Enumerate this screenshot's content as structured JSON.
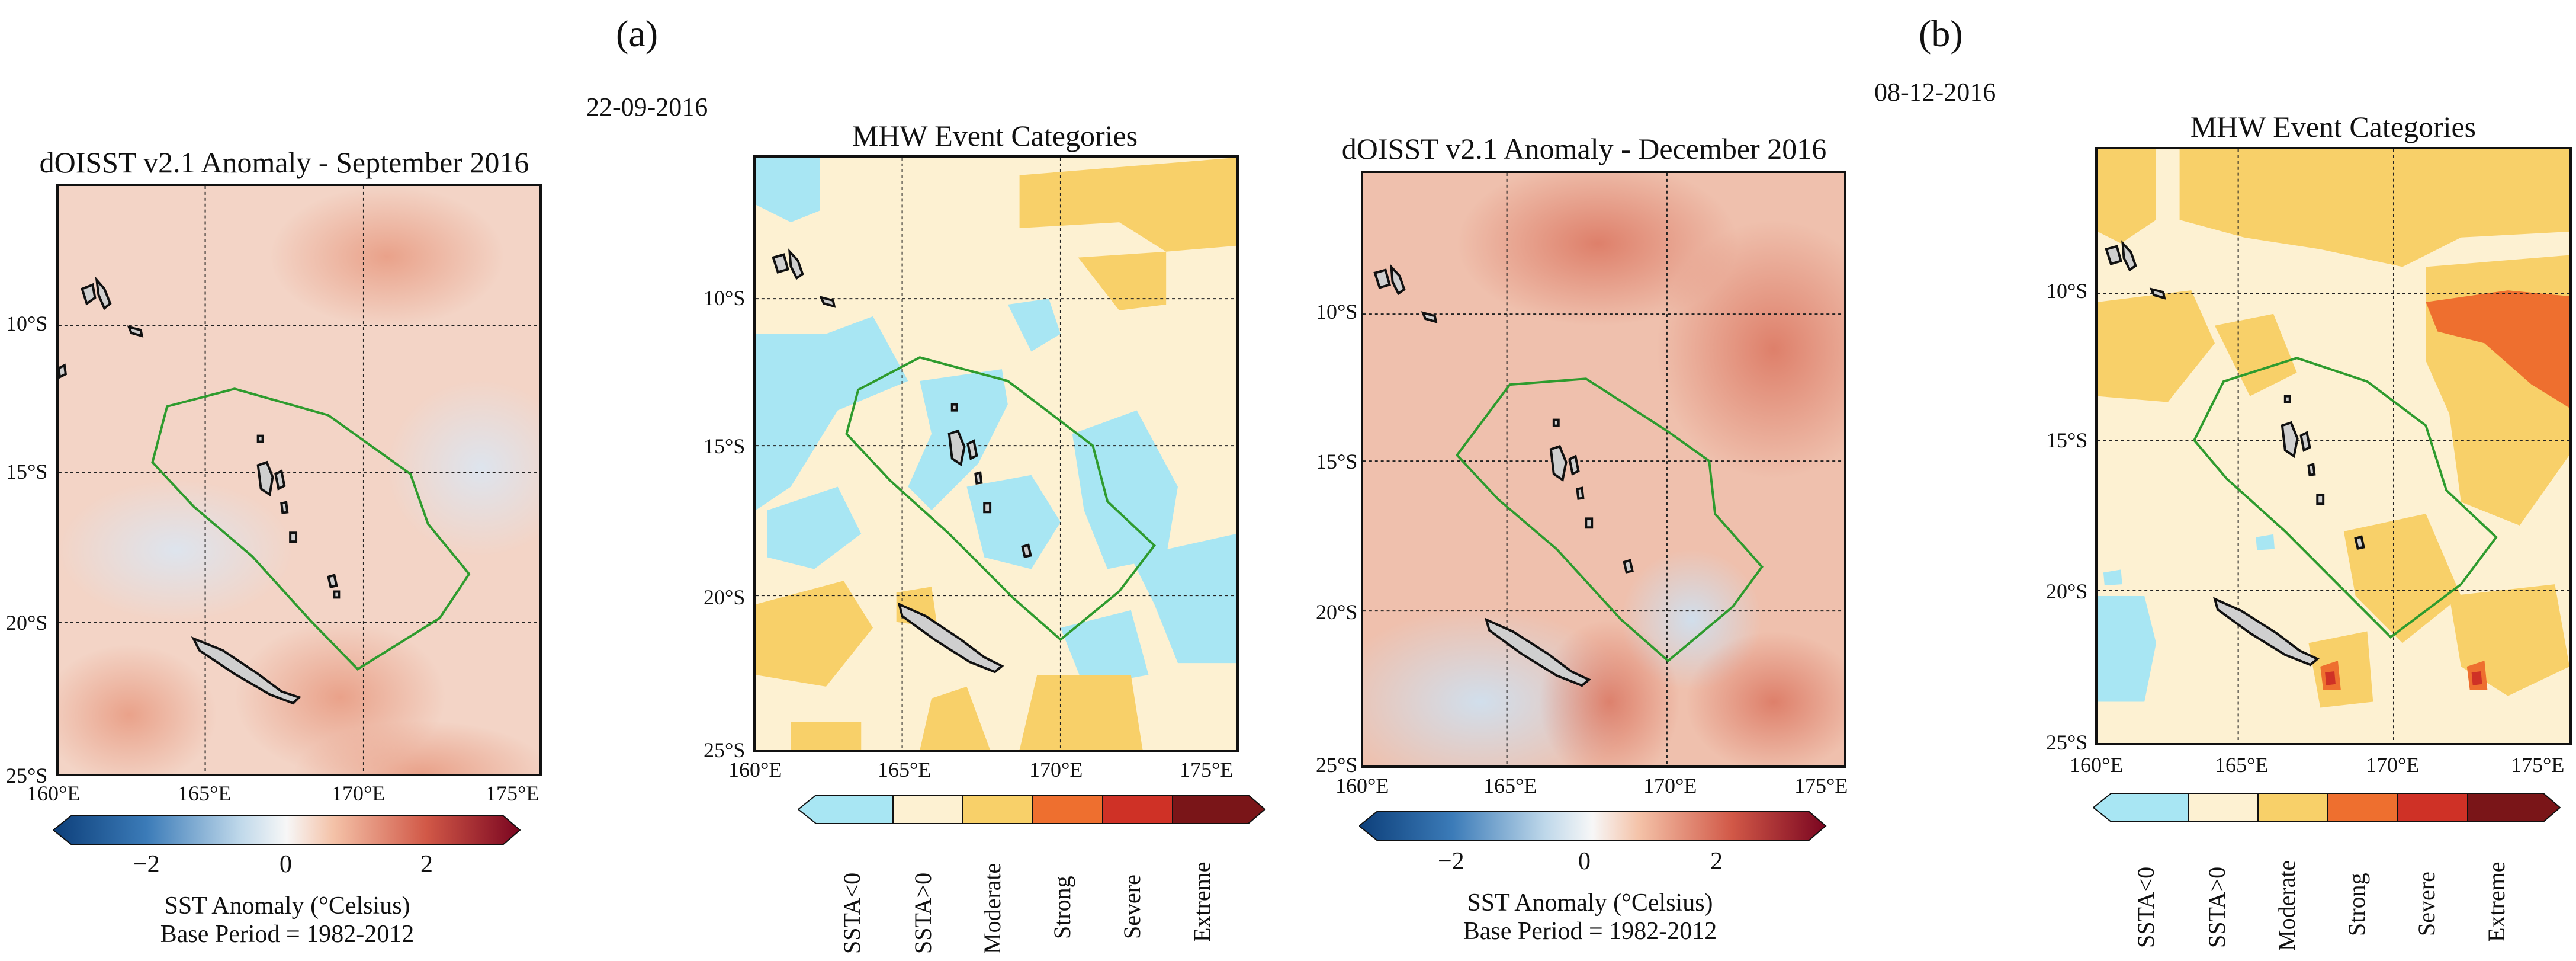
{
  "panel_labels": [
    "(a)",
    "(b)"
  ],
  "dates": [
    "22-09-2016",
    "08-12-2016"
  ],
  "colors": {
    "ssta_lt0": "#a8e6f3",
    "ssta_gt0": "#fdf1d2",
    "moderate": "#f8d069",
    "strong": "#ee6f2f",
    "severe": "#cf3126",
    "extreme": "#7a1518",
    "eez_outline": "#2e9b2e",
    "land": "#cfcfcf"
  },
  "anomaly_maps": [
    {
      "title": "dOISST v2.1 Anomaly - September 2016",
      "colorbar_ticks": [
        "−2",
        "0",
        "2"
      ],
      "colorbar_label": "SST Anomaly (°Celsius)",
      "base_period": "Base Period = 1982-2012"
    },
    {
      "title": "dOISST v2.1 Anomaly - December 2016",
      "colorbar_ticks": [
        "−2",
        "0",
        "2"
      ],
      "colorbar_label": "SST Anomaly (°Celsius)",
      "base_period": "Base Period = 1982-2012"
    }
  ],
  "category_maps": [
    {
      "title": "MHW Event Categories"
    },
    {
      "title": "MHW Event Categories"
    }
  ],
  "lat_ticks": [
    "10°S",
    "15°S",
    "20°S",
    "25°S"
  ],
  "lon_ticks": [
    "160°E",
    "165°E",
    "170°E",
    "175°E"
  ],
  "categories": [
    "SSTA<0",
    "SSTA>0",
    "Moderate",
    "Strong",
    "Severe",
    "Extreme"
  ]
}
